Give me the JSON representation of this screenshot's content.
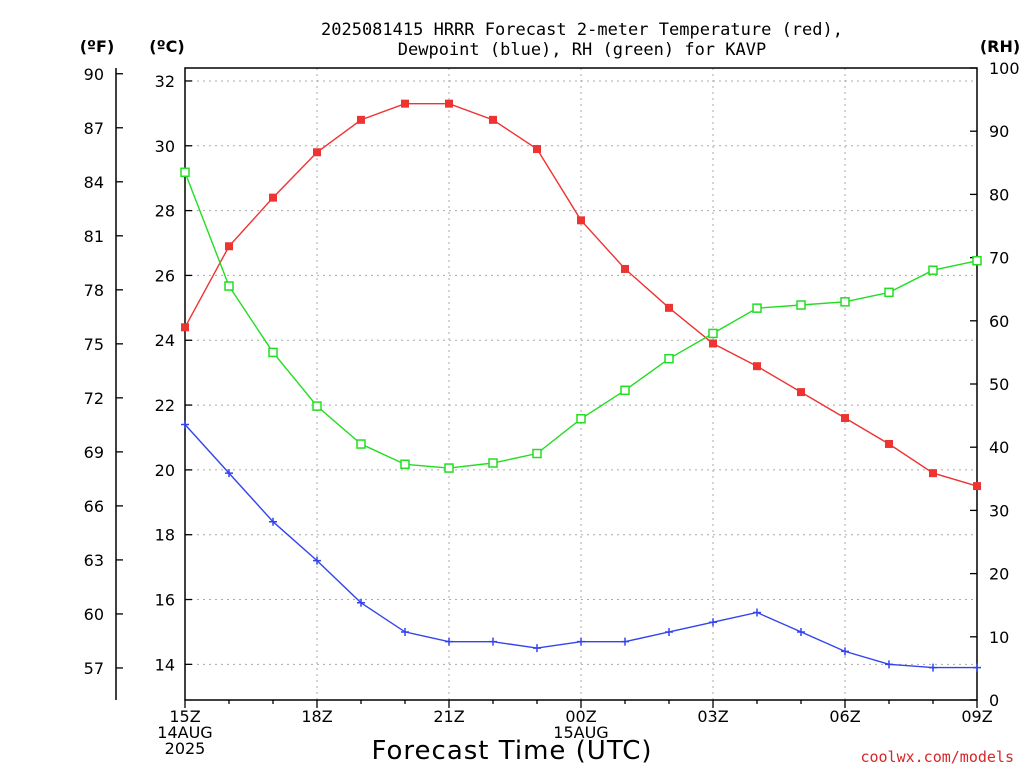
{
  "chart_data": {
    "type": "line",
    "title_lines": [
      "2025081415 HRRR Forecast 2-meter Temperature (red),",
      "Dewpoint (blue), RH (green) for KAVP"
    ],
    "xlabel": "Forecast Time (UTC)",
    "credit": "coolwx.com/models",
    "x_count": 19,
    "x_ticks": [
      {
        "index": 0,
        "lines": [
          "15Z",
          "14AUG",
          "2025"
        ]
      },
      {
        "index": 3,
        "lines": [
          "18Z"
        ]
      },
      {
        "index": 6,
        "lines": [
          "21Z"
        ]
      },
      {
        "index": 9,
        "lines": [
          "00Z",
          "15AUG"
        ]
      },
      {
        "index": 12,
        "lines": [
          "03Z"
        ]
      },
      {
        "index": 15,
        "lines": [
          "06Z"
        ]
      },
      {
        "index": 18,
        "lines": [
          "09Z"
        ]
      }
    ],
    "axes": {
      "fahrenheit": {
        "unit_label": "(ºF)",
        "ticks": [
          "57",
          "60",
          "63",
          "66",
          "69",
          "72",
          "75",
          "78",
          "81",
          "84",
          "87",
          "90"
        ]
      },
      "celsius": {
        "unit_label": "(ºC)",
        "ylim": [
          12.9,
          32.4
        ],
        "ticks": [
          "14",
          "16",
          "18",
          "20",
          "22",
          "24",
          "26",
          "28",
          "30",
          "32"
        ]
      },
      "rh": {
        "unit_label": "(RH)",
        "ylim": [
          0,
          100
        ],
        "ticks": [
          "0",
          "10",
          "20",
          "30",
          "40",
          "50",
          "60",
          "70",
          "80",
          "90",
          "100"
        ]
      }
    },
    "grid": true,
    "colors": {
      "temperature": "#ee3333",
      "dewpoint": "#3344ee",
      "rh": "#22dd22"
    },
    "series": [
      {
        "key": "temperature",
        "axis": "celsius",
        "marker": "filled-square",
        "values": [
          24.4,
          26.9,
          28.4,
          29.8,
          30.8,
          31.3,
          31.3,
          30.8,
          29.9,
          27.7,
          26.2,
          25.0,
          23.9,
          23.2,
          22.4,
          21.6,
          20.8,
          19.9,
          19.5
        ]
      },
      {
        "key": "dewpoint",
        "axis": "celsius",
        "marker": "plus",
        "values": [
          21.4,
          19.9,
          18.4,
          17.2,
          15.9,
          15.0,
          14.7,
          14.7,
          14.5,
          14.7,
          14.7,
          15.0,
          15.3,
          15.6,
          15.0,
          14.4,
          14.0,
          13.9,
          13.9
        ]
      },
      {
        "key": "rh",
        "axis": "rh",
        "marker": "open-square",
        "values": [
          83.5,
          65.5,
          55.0,
          46.5,
          40.5,
          37.3,
          36.7,
          37.5,
          39.0,
          44.5,
          49.0,
          54.0,
          58.0,
          62.0,
          62.5,
          63.0,
          64.5,
          68.0,
          69.5
        ]
      }
    ]
  }
}
